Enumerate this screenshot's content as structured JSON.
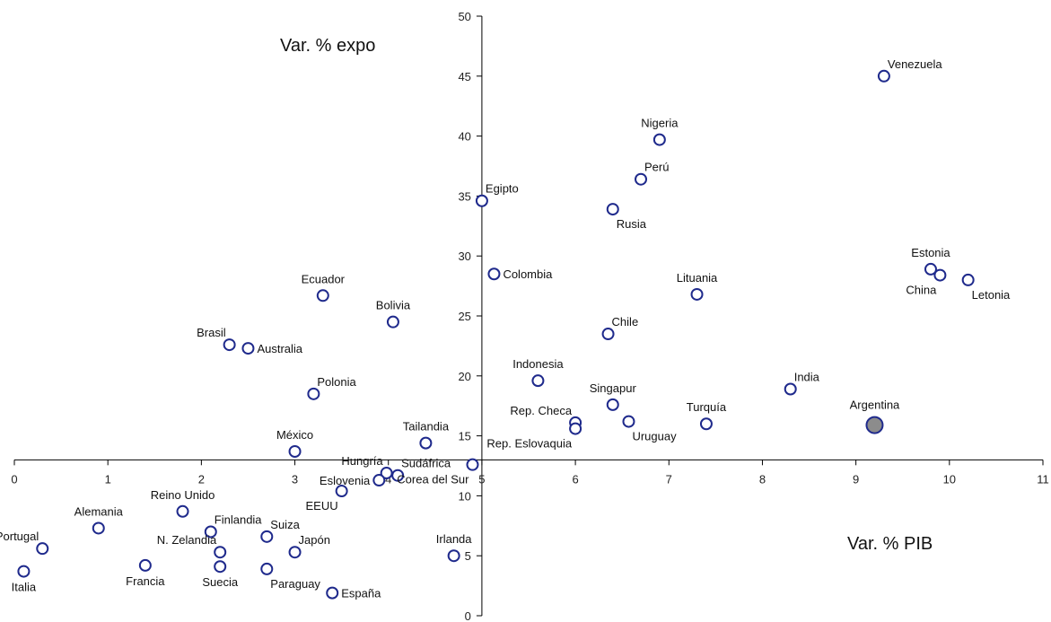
{
  "chart_data": {
    "type": "scatter",
    "title": "",
    "xlabel": "Var. % PIB",
    "ylabel": "Var. %  expo",
    "xlim": [
      0,
      11
    ],
    "ylim": [
      0,
      50
    ],
    "x_ticks": [
      "0",
      "1",
      "2",
      "3",
      "4",
      "5",
      "6",
      "7",
      "8",
      "9",
      "10",
      "11"
    ],
    "y_ticks": [
      "0",
      "5",
      "10",
      "15",
      "20",
      "25",
      "30",
      "35",
      "40",
      "45",
      "50"
    ],
    "crossing": {
      "x": 5,
      "y": 13
    },
    "grid": false,
    "colors": {
      "marker_stroke": "#1f2a8c",
      "marker_fill": "#ffffff",
      "highlight_fill": "#8c8c8c",
      "highlight_stroke": "#1f2a8c",
      "axis": "#000000"
    },
    "points": [
      {
        "label": "Venezuela",
        "x": 9.3,
        "y": 45.0,
        "anchor": "ne"
      },
      {
        "label": "Nigeria",
        "x": 6.9,
        "y": 39.7,
        "anchor": "n"
      },
      {
        "label": "Perú",
        "x": 6.7,
        "y": 36.4,
        "anchor": "ne"
      },
      {
        "label": "Egipto",
        "x": 5.0,
        "y": 34.6,
        "anchor": "ne"
      },
      {
        "label": "Rusia",
        "x": 6.4,
        "y": 33.9,
        "anchor": "se"
      },
      {
        "label": "Estonia",
        "x": 9.8,
        "y": 28.9,
        "anchor": "n"
      },
      {
        "label": "China",
        "x": 9.9,
        "y": 28.4,
        "anchor": "sw"
      },
      {
        "label": "Letonia",
        "x": 10.2,
        "y": 28.0,
        "anchor": "se"
      },
      {
        "label": "Colombia",
        "x": 5.13,
        "y": 28.5,
        "anchor": "e"
      },
      {
        "label": "Lituania",
        "x": 7.3,
        "y": 26.8,
        "anchor": "n"
      },
      {
        "label": "Ecuador",
        "x": 3.3,
        "y": 26.7,
        "anchor": "n"
      },
      {
        "label": "Bolivia",
        "x": 4.05,
        "y": 24.5,
        "anchor": "n"
      },
      {
        "label": "Chile",
        "x": 6.35,
        "y": 23.5,
        "anchor": "ne"
      },
      {
        "label": "Brasil",
        "x": 2.3,
        "y": 22.6,
        "anchor": "nw"
      },
      {
        "label": "Australia",
        "x": 2.5,
        "y": 22.3,
        "anchor": "e"
      },
      {
        "label": "Indonesia",
        "x": 5.6,
        "y": 19.6,
        "anchor": "n"
      },
      {
        "label": "India",
        "x": 8.3,
        "y": 18.9,
        "anchor": "ne"
      },
      {
        "label": "Polonia",
        "x": 3.2,
        "y": 18.5,
        "anchor": "ne"
      },
      {
        "label": "Singapur",
        "x": 6.4,
        "y": 17.6,
        "anchor": "n"
      },
      {
        "label": "Rep. Checa",
        "x": 6.0,
        "y": 16.1,
        "anchor": "nw"
      },
      {
        "label": "Uruguay",
        "x": 6.57,
        "y": 16.2,
        "anchor": "se"
      },
      {
        "label": "Turquía",
        "x": 7.4,
        "y": 16.0,
        "anchor": "n"
      },
      {
        "label": "Argentina",
        "x": 9.2,
        "y": 15.9,
        "anchor": "n",
        "highlight": true
      },
      {
        "label": "Rep. Eslovaquia",
        "x": 6.0,
        "y": 15.6,
        "anchor": "sw"
      },
      {
        "label": "Tailandia",
        "x": 4.4,
        "y": 14.4,
        "anchor": "n"
      },
      {
        "label": "México",
        "x": 3.0,
        "y": 13.7,
        "anchor": "n"
      },
      {
        "label": "Hungría",
        "x": 3.98,
        "y": 11.9,
        "anchor": "nw"
      },
      {
        "label": "Sudáfrica",
        "x": 4.1,
        "y": 11.7,
        "anchor": "ne"
      },
      {
        "label": "Eslovenia",
        "x": 3.9,
        "y": 11.3,
        "anchor": "w"
      },
      {
        "label": "Corea del Sur",
        "x": 4.9,
        "y": 12.6,
        "anchor": "sw"
      },
      {
        "label": "EEUU",
        "x": 3.5,
        "y": 10.4,
        "anchor": "sw"
      },
      {
        "label": "Reino Unido",
        "x": 1.8,
        "y": 8.7,
        "anchor": "n"
      },
      {
        "label": "Alemania",
        "x": 0.9,
        "y": 7.3,
        "anchor": "n"
      },
      {
        "label": "Finlandia",
        "x": 2.1,
        "y": 7.0,
        "anchor": "ne"
      },
      {
        "label": "Suiza",
        "x": 2.7,
        "y": 6.6,
        "anchor": "ne"
      },
      {
        "label": "Portugal",
        "x": 0.3,
        "y": 5.6,
        "anchor": "nw"
      },
      {
        "label": "N. Zelandia",
        "x": 2.2,
        "y": 5.3,
        "anchor": "nw"
      },
      {
        "label": "Japón",
        "x": 3.0,
        "y": 5.3,
        "anchor": "ne"
      },
      {
        "label": "Irlanda",
        "x": 4.7,
        "y": 5.0,
        "anchor": "n"
      },
      {
        "label": "Francia",
        "x": 1.4,
        "y": 4.2,
        "anchor": "s"
      },
      {
        "label": "Suecia",
        "x": 2.2,
        "y": 4.1,
        "anchor": "s"
      },
      {
        "label": "Paraguay",
        "x": 2.7,
        "y": 3.9,
        "anchor": "se"
      },
      {
        "label": "Italia",
        "x": 0.1,
        "y": 3.7,
        "anchor": "s"
      },
      {
        "label": "España",
        "x": 3.4,
        "y": 1.9,
        "anchor": "e"
      }
    ]
  }
}
